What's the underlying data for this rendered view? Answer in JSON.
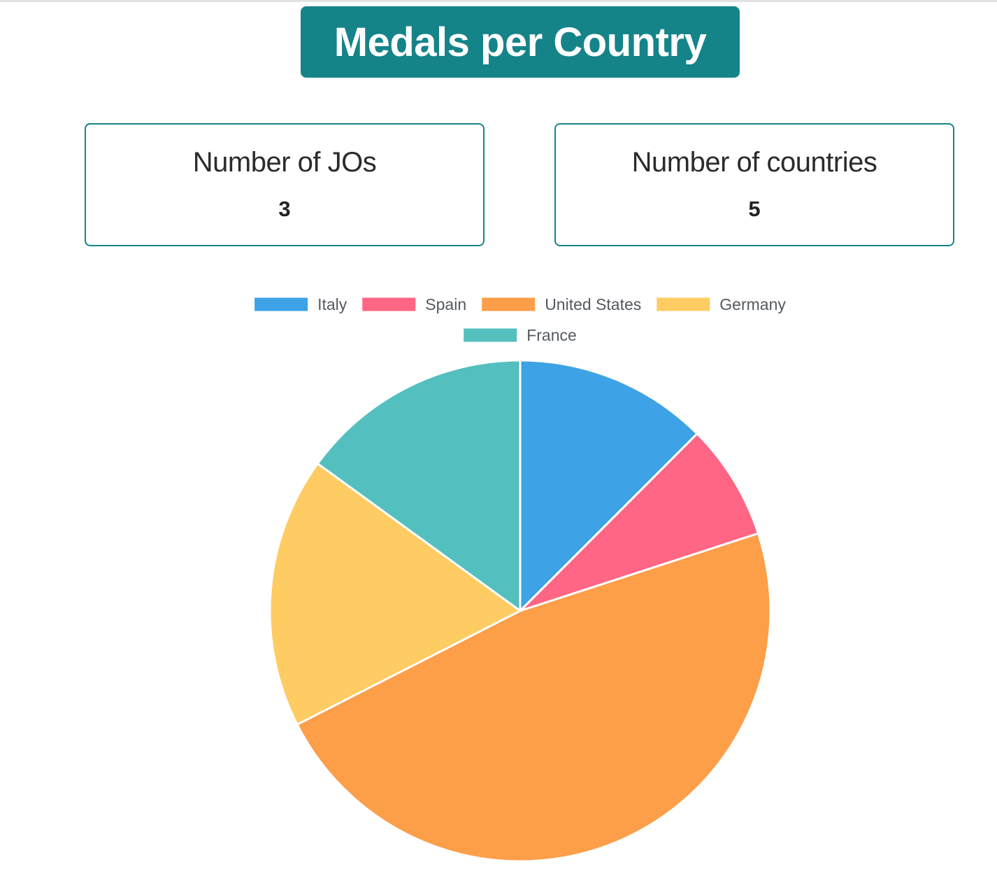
{
  "header": {
    "title": "Medals per Country"
  },
  "stats": [
    {
      "label": "Number of JOs",
      "value": "3"
    },
    {
      "label": "Number of countries",
      "value": "5"
    }
  ],
  "chart_data": {
    "type": "pie",
    "title": "",
    "legend_position": "top",
    "categories": [
      "Italy",
      "Spain",
      "United States",
      "Germany",
      "France"
    ],
    "values": [
      12.5,
      7.5,
      47.5,
      17.5,
      15
    ],
    "colors": [
      "#3ea2e6",
      "#ff6584",
      "#fd9e49",
      "#fecc62",
      "#54bfbf"
    ]
  }
}
